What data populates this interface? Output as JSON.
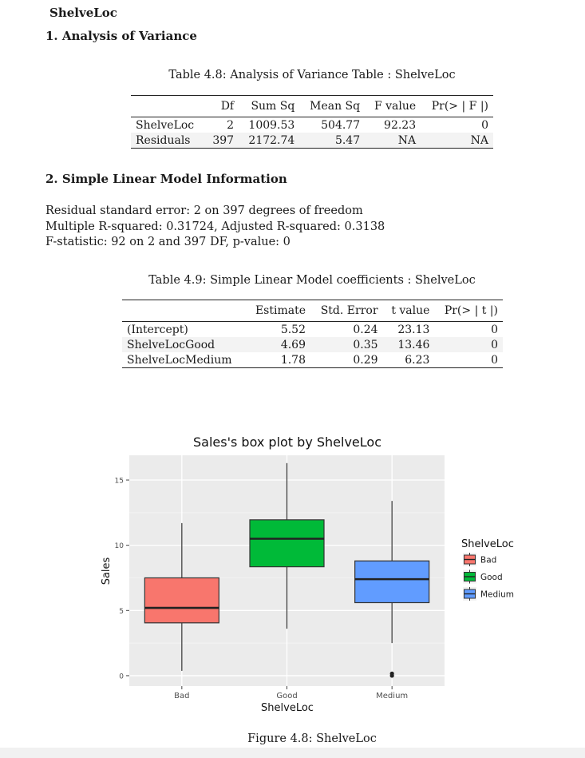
{
  "section_title": "ShelveLoc",
  "sec1": {
    "heading": "1.  Analysis of Variance"
  },
  "anova": {
    "caption": "Table 4.8: Analysis of Variance Table : ShelveLoc",
    "headers": [
      "",
      "Df",
      "Sum Sq",
      "Mean Sq",
      "F value",
      "Pr(> | F |)"
    ],
    "rows": [
      [
        "ShelveLoc",
        "2",
        "1009.53",
        "504.77",
        "92.23",
        "0"
      ],
      [
        "Residuals",
        "397",
        "2172.74",
        "5.47",
        "NA",
        "NA"
      ]
    ]
  },
  "sec2": {
    "heading": "2.  Simple Linear Model Information",
    "lines": [
      "Residual standard error: 2 on 397 degrees of freedom",
      "Multiple R-squared: 0.31724, Adjusted R-squared: 0.3138",
      "F-statistic: 92 on 2 and 397 DF, p-value: 0"
    ]
  },
  "coef": {
    "caption": "Table 4.9: Simple Linear Model coefficients : ShelveLoc",
    "headers": [
      "",
      "Estimate",
      "Std. Error",
      "t value",
      "Pr(> | t |)"
    ],
    "rows": [
      [
        "(Intercept)",
        "5.52",
        "0.24",
        "23.13",
        "0"
      ],
      [
        "ShelveLocGood",
        "4.69",
        "0.35",
        "13.46",
        "0"
      ],
      [
        "ShelveLocMedium",
        "1.78",
        "0.29",
        "6.23",
        "0"
      ]
    ]
  },
  "figure_caption": "Figure 4.8: ShelveLoc",
  "chart_data": {
    "type": "box",
    "title": "Sales's box plot by ShelveLoc",
    "xlabel": "ShelveLoc",
    "ylabel": "Sales",
    "ylim": [
      -0.8,
      16.9
    ],
    "yticks": [
      0,
      5,
      10,
      15
    ],
    "categories": [
      "Bad",
      "Good",
      "Medium"
    ],
    "boxes": [
      {
        "category": "Bad",
        "whisker_low": 0.37,
        "q1": 4.05,
        "median": 5.2,
        "q3": 7.5,
        "whisker_high": 11.7,
        "outliers": [],
        "color": "#F8766D"
      },
      {
        "category": "Good",
        "whisker_low": 3.6,
        "q1": 8.35,
        "median": 10.5,
        "q3": 11.95,
        "whisker_high": 16.3,
        "outliers": [],
        "color": "#00BA38"
      },
      {
        "category": "Medium",
        "whisker_low": 2.5,
        "q1": 5.6,
        "median": 7.4,
        "q3": 8.8,
        "whisker_high": 13.4,
        "outliers": [
          0.0,
          0.16
        ],
        "color": "#619CFF"
      }
    ],
    "legend": {
      "title": "ShelveLoc",
      "position": "right",
      "entries": [
        "Bad",
        "Good",
        "Medium"
      ]
    },
    "grid": true,
    "panel_color": "#EBEBEB"
  }
}
